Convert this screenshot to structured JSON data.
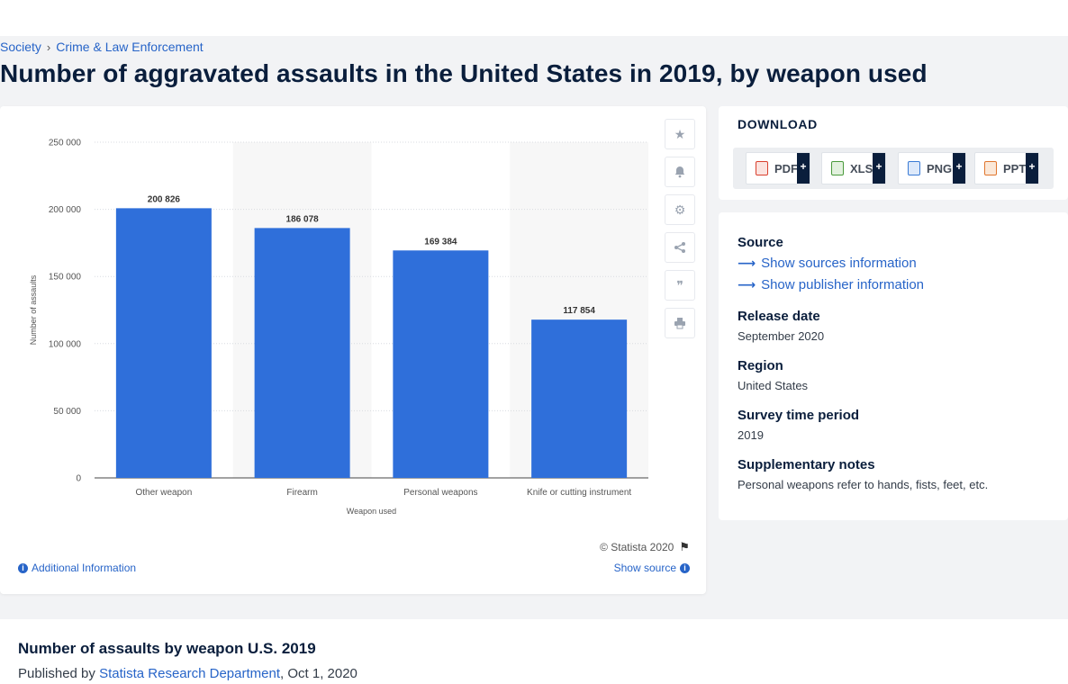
{
  "breadcrumb": {
    "items": [
      "Society",
      "Crime & Law Enforcement"
    ],
    "separator": "›"
  },
  "page_title": "Number of aggravated assaults in the United States in 2019, by weapon used",
  "chart_card": {
    "copyright": "© Statista 2020",
    "additional_info": "Additional Information",
    "show_source": "Show source",
    "tools": [
      "star-icon",
      "bell-icon",
      "gear-icon",
      "share-icon",
      "quote-icon",
      "print-icon"
    ]
  },
  "chart_data": {
    "type": "bar",
    "categories": [
      "Other weapon",
      "Firearm",
      "Personal weapons",
      "Knife or cutting instrument"
    ],
    "values": [
      200826,
      186078,
      169384,
      117854
    ],
    "data_labels": [
      "200 826",
      "186 078",
      "169 384",
      "117 854"
    ],
    "xlabel": "Weapon used",
    "ylabel": "Number of assaults",
    "ylim": [
      0,
      250000
    ],
    "yticks": [
      0,
      50000,
      100000,
      150000,
      200000,
      250000
    ],
    "ytick_labels": [
      "0",
      "50 000",
      "100 000",
      "150 000",
      "200 000",
      "250 000"
    ],
    "grid": true,
    "bar_color": "#2f6fda"
  },
  "download": {
    "heading": "DOWNLOAD",
    "buttons": [
      {
        "label": "PDF",
        "icon": "pdf-file-icon",
        "color": "#d9412f"
      },
      {
        "label": "XLS",
        "icon": "xls-file-icon",
        "color": "#4a9a3c"
      },
      {
        "label": "PNG",
        "icon": "png-file-icon",
        "color": "#3a7bd5"
      },
      {
        "label": "PPT",
        "icon": "ppt-file-icon",
        "color": "#e0762e"
      }
    ],
    "plus": "+"
  },
  "info": {
    "source_label": "Source",
    "show_sources": "Show sources information",
    "show_publisher": "Show publisher information",
    "release_label": "Release date",
    "release_value": "September 2020",
    "region_label": "Region",
    "region_value": "United States",
    "survey_label": "Survey time period",
    "survey_value": "2019",
    "notes_label": "Supplementary notes",
    "notes_value": "Personal weapons refer to hands, fists, feet, etc."
  },
  "bottom": {
    "title": "Number of assaults by weapon U.S. 2019",
    "published_by": "Published by",
    "publisher": "Statista Research Department",
    "date": ", Oct 1, 2020"
  }
}
